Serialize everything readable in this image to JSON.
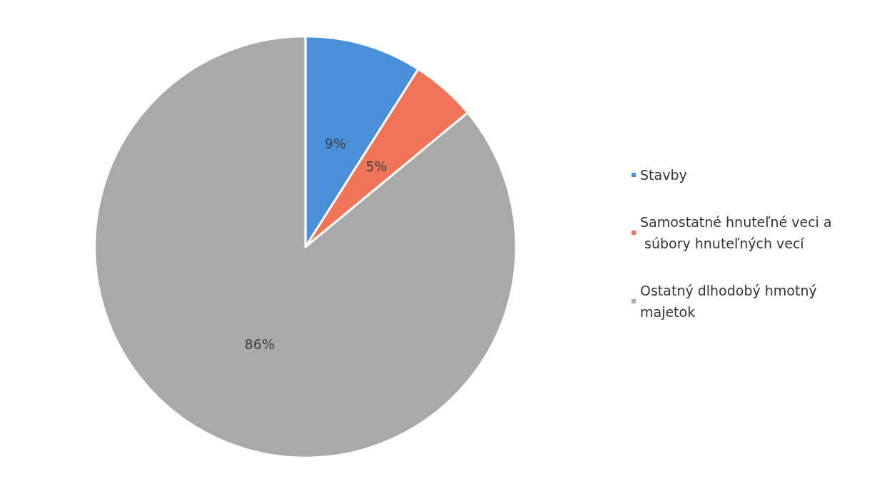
{
  "chart_data": {
    "type": "pie",
    "categories": [
      "Stavby",
      "Samostatné hnuteľné veci a súbory hnuteľných vecí",
      "Ostatný dlhodobý hmotný majetok"
    ],
    "values": [
      9,
      5,
      86
    ],
    "colors": [
      "#4a90d9",
      "#f07458",
      "#a9a9a9"
    ],
    "value_labels": [
      "9%",
      "5%",
      "86%"
    ],
    "legend": "right"
  }
}
